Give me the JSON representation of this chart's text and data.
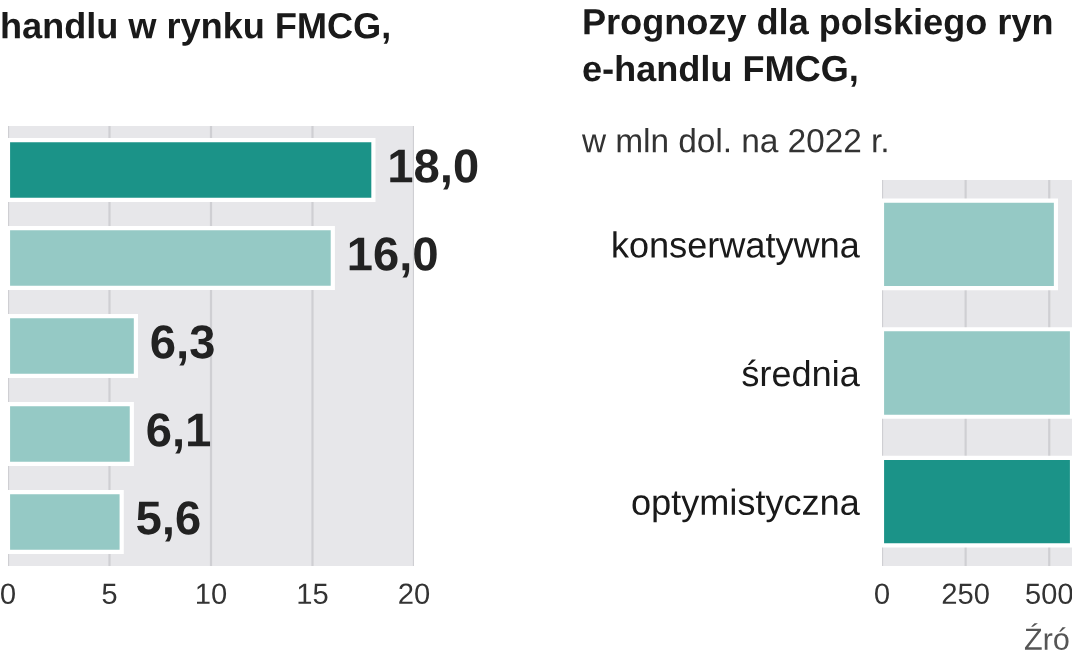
{
  "chart_data": [
    {
      "type": "bar",
      "orientation": "horizontal",
      "title": "handlu w rynku FMCG,",
      "categories": [
        null,
        null,
        null,
        null,
        null
      ],
      "values": [
        18.0,
        16.0,
        6.3,
        6.1,
        5.6
      ],
      "colors": [
        "#1b9388",
        "#95c9c5",
        "#95c9c5",
        "#95c9c5",
        "#95c9c5"
      ],
      "value_labels": [
        "18,0",
        "16,0",
        "6,3",
        "6,1",
        "5,6"
      ],
      "xlim": [
        0,
        20
      ],
      "xticks": [
        0,
        5,
        10,
        15,
        20
      ],
      "grid": "x"
    },
    {
      "type": "bar",
      "orientation": "horizontal",
      "title": "Prognozy dla polskiego ryn\ne-handlu FMCG,",
      "subtitle": "w mln dol. na 2022 r.",
      "categories": [
        "konserwatywna",
        "średnia",
        "optymistyczna"
      ],
      "values": [
        520,
        568,
        568
      ],
      "colors": [
        "#95c9c5",
        "#95c9c5",
        "#1b9388"
      ],
      "xlim": [
        0,
        568
      ],
      "xticks": [
        0,
        250,
        500
      ],
      "grid": "x",
      "annotations": [
        "Źró"
      ]
    }
  ]
}
